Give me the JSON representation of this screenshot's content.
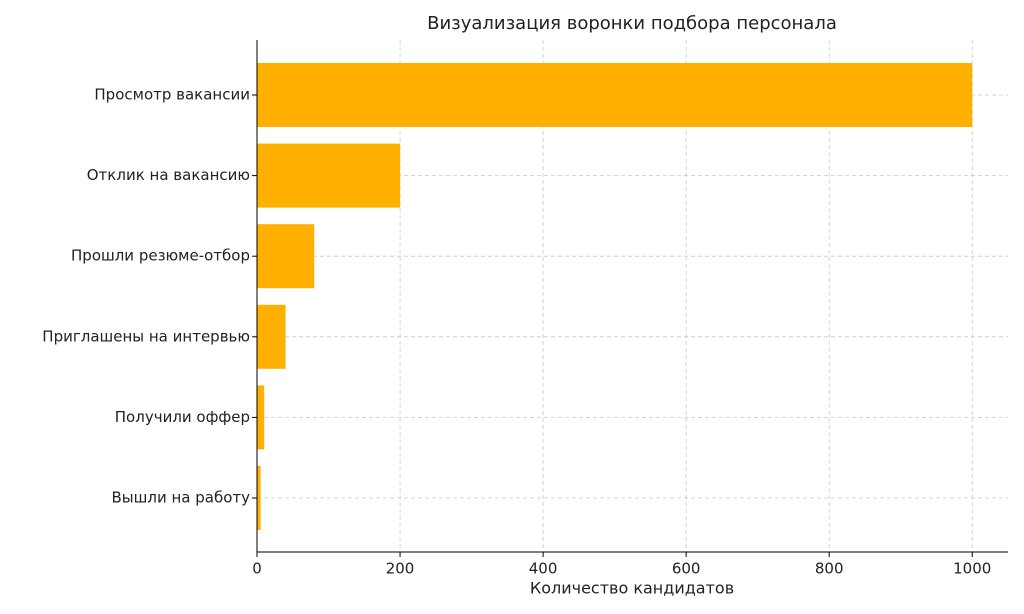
{
  "chart_data": {
    "type": "barh",
    "title": "Визуализация воронки подбора персонала",
    "xlabel": "Количество кандидатов",
    "categories": [
      "Просмотр вакансии",
      "Отклик на вакансию",
      "Прошли резюме-отбор",
      "Приглашены на интервью",
      "Получили оффер",
      "Вышли на работу"
    ],
    "values": [
      1000,
      200,
      80,
      40,
      10,
      5
    ],
    "color": "#ffb000",
    "xlim": [
      0,
      1050
    ],
    "xticks": [
      0,
      200,
      400,
      600,
      800,
      1000
    ],
    "grid": true
  }
}
